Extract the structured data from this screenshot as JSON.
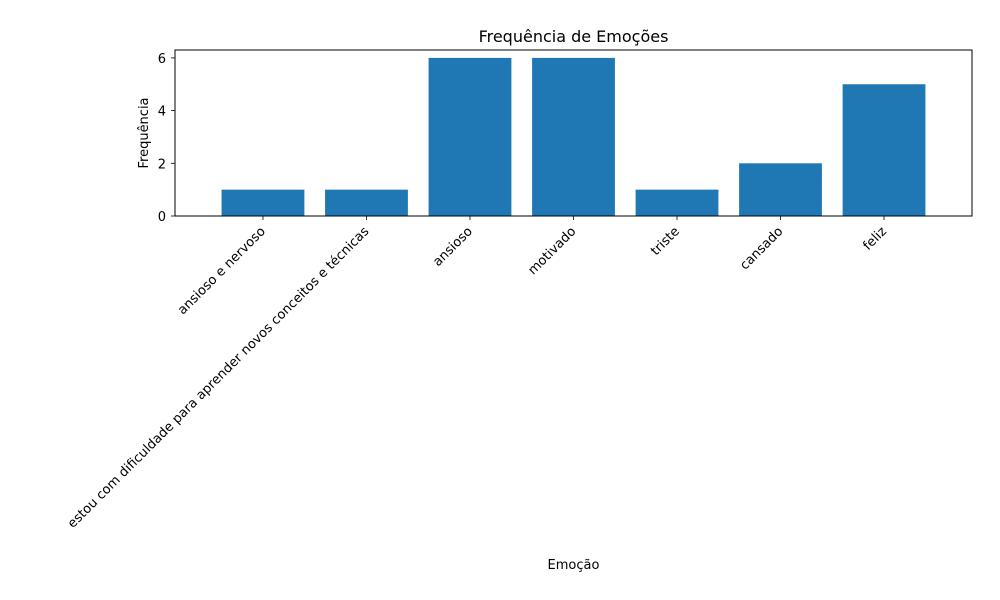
{
  "chart_data": {
    "type": "bar",
    "title": "Frequência de Emoções",
    "xlabel": "Emoção",
    "ylabel": "Frequência",
    "categories": [
      "ansioso e nervoso",
      "estou com dificuldade para aprender novos conceitos e técnicas",
      "ansioso",
      "motivado",
      "triste",
      "cansado",
      "feliz"
    ],
    "values": [
      1,
      1,
      6,
      6,
      1,
      2,
      5
    ],
    "ylim": [
      0,
      6.3
    ],
    "yticks": [
      0,
      2,
      4,
      6
    ],
    "grid": false,
    "bar_color": "#1f77b4"
  }
}
